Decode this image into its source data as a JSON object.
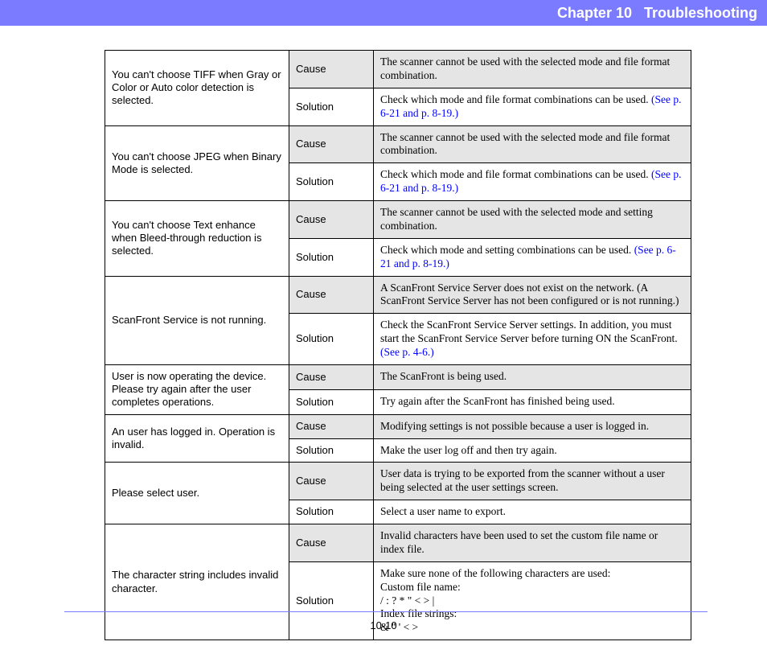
{
  "header": {
    "chapter": "Chapter 10",
    "title": "Troubleshooting"
  },
  "colors": {
    "header_bg": "#7b7bff",
    "header_text": "#ffffff",
    "link": "#0000ff",
    "row_shade": "#e5e5e5",
    "border": "#000000"
  },
  "labels": {
    "cause": "Cause",
    "solution": "Solution"
  },
  "rows": [
    {
      "issue": "You can't choose TIFF when Gray or Color or Auto color detection is selected.",
      "cause": "The scanner cannot be used with the selected mode and file format combination.",
      "solution_text": "Check which mode and file format combinations can be used. ",
      "solution_link": "(See p. 6-21 and p. 8-19.)"
    },
    {
      "issue": "You can't choose JPEG when Binary Mode is selected.",
      "cause": "The scanner cannot be used with the selected mode and file format combination.",
      "solution_text": "Check which mode and file format combinations can be used. ",
      "solution_link": "(See p. 6-21 and p. 8-19.)"
    },
    {
      "issue": "You can't choose Text enhance when Bleed-through reduction is selected.",
      "cause": "The scanner cannot be used with the selected mode and setting combination.",
      "solution_text": "Check which mode and setting combinations can be used. ",
      "solution_link": "(See p. 6-21 and p. 8-19.)"
    },
    {
      "issue": "ScanFront Service is not running.",
      "cause": "A ScanFront Service Server does not exist on the network. (A ScanFront Service Server has not been configured or is not running.)",
      "solution_text": "Check the ScanFront Service Server settings. In addition, you must start the ScanFront Service Server before turning ON the ScanFront. ",
      "solution_link": "(See p. 4-6.)"
    },
    {
      "issue": "User is now operating the device. Please try again after the user completes operations.",
      "cause": "The ScanFront is being used.",
      "solution_text": "Try again after the ScanFront has finished being used.",
      "solution_link": ""
    },
    {
      "issue": "An user has logged in. Operation is invalid.",
      "cause": "Modifying settings is not possible because a user is logged in.",
      "solution_text": "Make the user log off and then try again.",
      "solution_link": ""
    },
    {
      "issue": "Please select user.",
      "cause": "User data is trying to be exported from the scanner without a user being selected at the user settings screen.",
      "solution_text": "Select a user name to export.",
      "solution_link": ""
    },
    {
      "issue": "The character string includes invalid character.",
      "cause": "Invalid characters have been used to set the custom file name or index file.",
      "solution_text": "Make sure none of the following characters are used:\nCustom file name:\n/ : ? * \" < > |\nIndex file strings:\n& \" ' < >",
      "solution_link": ""
    }
  ],
  "footer": {
    "page": "10-10"
  }
}
